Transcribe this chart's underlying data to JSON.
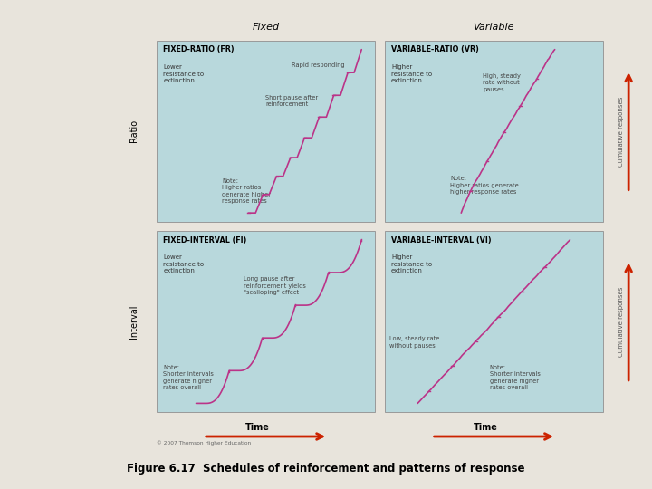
{
  "bg_outer": "#e8e4dc",
  "bg_cream": "#fdf5e0",
  "bg_panel": "#b8d8dc",
  "line_color": "#bb3388",
  "arrow_color": "#cc2200",
  "title": "Figure 6.17  Schedules of reinforcement and patterns of response",
  "header_fixed": "Fixed",
  "header_variable": "Variable",
  "ylabel_top": "Ratio",
  "ylabel_bottom": "Interval",
  "cum_resp": "Cumulative responses",
  "time_label": "Time",
  "copyright": "© 2007 Thomson Higher Education",
  "panel_titles": [
    "FIXED-RATIO (FR)",
    "VARIABLE-RATIO (VR)",
    "FIXED-INTERVAL (FI)",
    "VARIABLE-INTERVAL (VI)"
  ],
  "panel_subtitles": [
    "Lower\nresistance to\nextinction",
    "Higher\nresistance to\nextinction",
    "Lower\nresistance to\nextinction",
    "Higher\nresistance to\nextinction"
  ]
}
